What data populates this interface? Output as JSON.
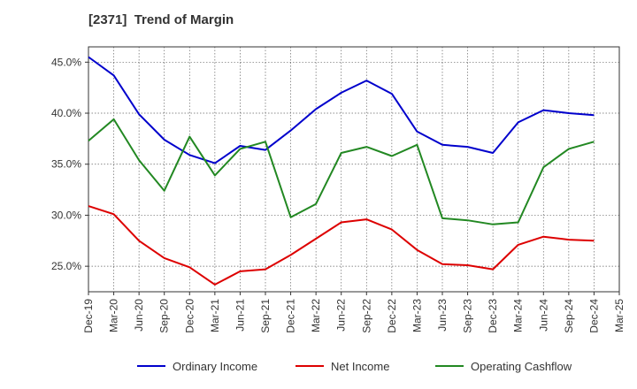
{
  "chart_data": {
    "type": "line",
    "title": "[2371]  Trend of Margin",
    "xlabel": "",
    "ylabel": "",
    "x": [
      "Dec-19",
      "Mar-20",
      "Jun-20",
      "Sep-20",
      "Dec-20",
      "Mar-21",
      "Jun-21",
      "Sep-21",
      "Dec-21",
      "Mar-22",
      "Jun-22",
      "Sep-22",
      "Dec-22",
      "Mar-23",
      "Jun-23",
      "Sep-23",
      "Dec-23",
      "Mar-24",
      "Jun-24",
      "Sep-24",
      "Dec-24",
      "Mar-25"
    ],
    "ylim": [
      22.5,
      46.5
    ],
    "yticks": [
      25.0,
      30.0,
      35.0,
      40.0,
      45.0
    ],
    "ytick_labels": [
      "25.0%",
      "30.0%",
      "35.0%",
      "40.0%",
      "45.0%"
    ],
    "grid": true,
    "legend_position": "bottom",
    "series": [
      {
        "name": "Ordinary Income",
        "color": "#0000cc",
        "values": [
          45.5,
          43.7,
          39.9,
          37.4,
          35.9,
          35.1,
          36.8,
          36.4,
          38.3,
          40.4,
          42.0,
          43.2,
          41.9,
          38.2,
          36.9,
          36.7,
          36.1,
          39.1,
          40.3,
          40.0,
          39.8,
          null
        ]
      },
      {
        "name": "Net Income",
        "color": "#dd0000",
        "values": [
          30.9,
          30.1,
          27.5,
          25.8,
          24.9,
          23.2,
          24.5,
          24.7,
          26.1,
          27.7,
          29.3,
          29.6,
          28.6,
          26.6,
          25.2,
          25.1,
          24.7,
          27.1,
          27.9,
          27.6,
          27.5,
          null
        ]
      },
      {
        "name": "Operating Cashflow",
        "color": "#228822",
        "values": [
          37.3,
          39.4,
          35.4,
          32.4,
          37.7,
          33.9,
          36.5,
          37.2,
          29.8,
          31.1,
          36.1,
          36.7,
          35.8,
          36.9,
          29.7,
          29.5,
          29.1,
          29.3,
          34.7,
          36.5,
          37.2,
          null
        ]
      }
    ]
  }
}
